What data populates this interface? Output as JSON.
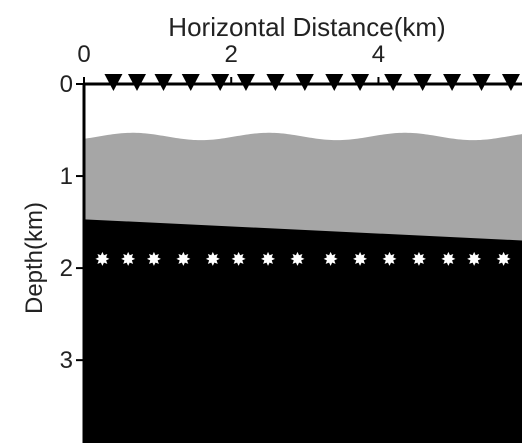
{
  "title": "Horizontal Distance(km)",
  "y_axis_label": "Depth(km)",
  "x_ticks": [
    {
      "value": 0,
      "label": "0"
    },
    {
      "value": 2,
      "label": "2"
    },
    {
      "value": 4,
      "label": "4"
    }
  ],
  "y_ticks": [
    {
      "value": 0,
      "label": "0"
    },
    {
      "value": 1,
      "label": "1"
    },
    {
      "value": 2,
      "label": "2"
    },
    {
      "value": 3,
      "label": "3"
    }
  ],
  "model": {
    "x_range_km": [
      0,
      5.95
    ],
    "y_range_km": [
      0,
      3.9
    ],
    "colors": {
      "upper_layer": "#ffffff",
      "middle_layer": "#a6a6a6",
      "lower_layer": "#000000",
      "receiver": "#000000",
      "source": "#ffffff"
    },
    "middle_layer_top": {
      "shape": "wavy",
      "mean_depth_km": 0.57,
      "amplitude_km": 0.04,
      "wavelength_km": 1.85
    },
    "lower_layer_top": {
      "shape": "dipping line",
      "depth_at_left_km": 1.47,
      "depth_at_right_km": 1.7
    }
  },
  "receivers": {
    "symbol": "inverted-triangle",
    "depth_km": 0.0,
    "x_km": [
      0.4,
      0.72,
      1.08,
      1.45,
      1.85,
      2.2,
      2.6,
      3.0,
      3.4,
      3.75,
      4.2,
      4.6,
      5.0,
      5.4,
      5.8
    ]
  },
  "sources": {
    "symbol": "star",
    "depth_km": 1.9,
    "x_km": [
      0.25,
      0.6,
      0.95,
      1.35,
      1.75,
      2.1,
      2.5,
      2.9,
      3.35,
      3.75,
      4.15,
      4.55,
      4.95,
      5.3,
      5.7
    ]
  }
}
